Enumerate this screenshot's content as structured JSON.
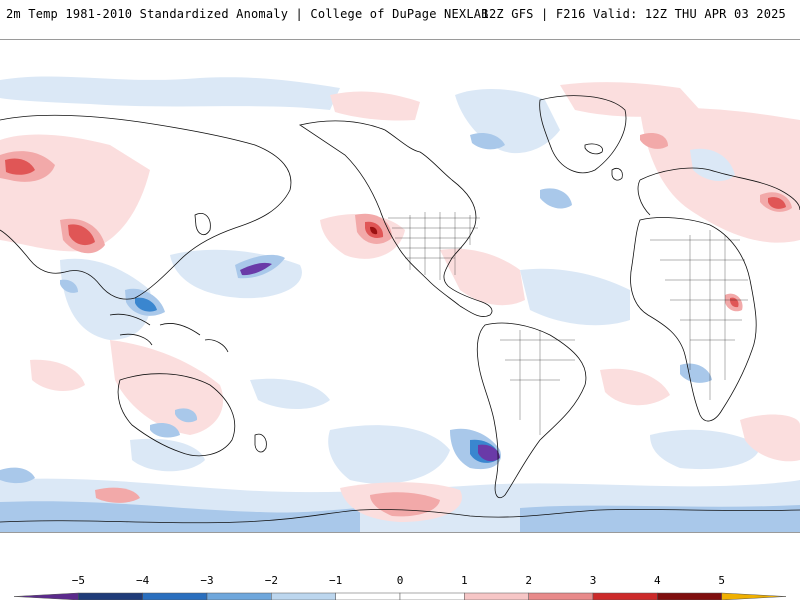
{
  "header": {
    "left": "2m Temp 1981-2010 Standardized Anomaly | College of DuPage NEXLAB",
    "right": "12Z GFS | F216 Valid: 12Z THU APR 03 2025"
  },
  "colorbar": {
    "tick_labels": [
      "-5",
      "-4",
      "-3",
      "-2",
      "-1",
      "0",
      "1",
      "2",
      "3",
      "4",
      "5"
    ],
    "bins": [
      {
        "from": -6,
        "to": -5,
        "color": "#5b2a8c"
      },
      {
        "from": -5,
        "to": -4,
        "color": "#1f3b78"
      },
      {
        "from": -4,
        "to": -3,
        "color": "#2a6fbe"
      },
      {
        "from": -3,
        "to": -2,
        "color": "#6fa7dc"
      },
      {
        "from": -2,
        "to": -1,
        "color": "#bcd6ee"
      },
      {
        "from": -1,
        "to": 0,
        "color": "#ffffff"
      },
      {
        "from": 0,
        "to": 1,
        "color": "#ffffff"
      },
      {
        "from": 1,
        "to": 2,
        "color": "#f6c6c6"
      },
      {
        "from": 2,
        "to": 3,
        "color": "#e88a8a"
      },
      {
        "from": 3,
        "to": 4,
        "color": "#cc2a2a"
      },
      {
        "from": 4,
        "to": 5,
        "color": "#7f0f0f"
      },
      {
        "from": 5,
        "to": 6,
        "color": "#f0b000"
      }
    ]
  },
  "map": {
    "projection": "equirectangular",
    "colors": {
      "ocean": "#ffffff",
      "coastline": "#111111",
      "weak_cold": "#dbe8f6",
      "cold": "#a9c8ea",
      "very_cold": "#3a86cf",
      "extreme_cold": "#6a3aa8",
      "weak_warm": "#fbdede",
      "warm": "#f2a9a9",
      "very_warm": "#e05656",
      "extreme_warm": "#9b1111"
    }
  }
}
